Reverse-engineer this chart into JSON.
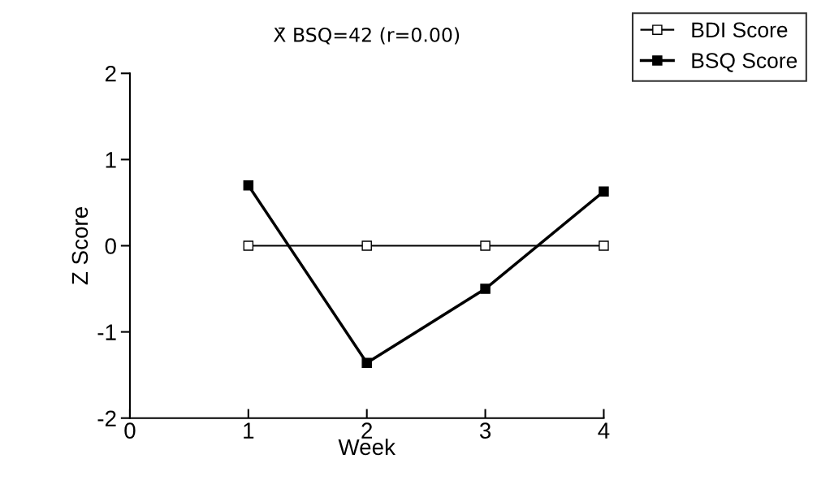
{
  "chart_data": {
    "type": "line",
    "title": "X̄ BSQ=42 (r=0.00)",
    "xlabel": "Week",
    "ylabel": "Z Score",
    "x": [
      1,
      2,
      3,
      4
    ],
    "xlim": [
      0,
      4
    ],
    "xticks": [
      0,
      1,
      2,
      3,
      4
    ],
    "ylim": [
      -2,
      2
    ],
    "yticks": [
      -2,
      -1,
      0,
      1,
      2
    ],
    "series": [
      {
        "name": "BDI Score",
        "color": "#000000",
        "values": [
          0,
          0,
          0,
          0
        ]
      },
      {
        "name": "BSQ Score",
        "color": "#000000",
        "values": [
          0.7,
          -1.36,
          -0.5,
          0.63
        ]
      }
    ],
    "marker": "square",
    "line_style": "solid",
    "legend": "top right",
    "grid": false
  }
}
